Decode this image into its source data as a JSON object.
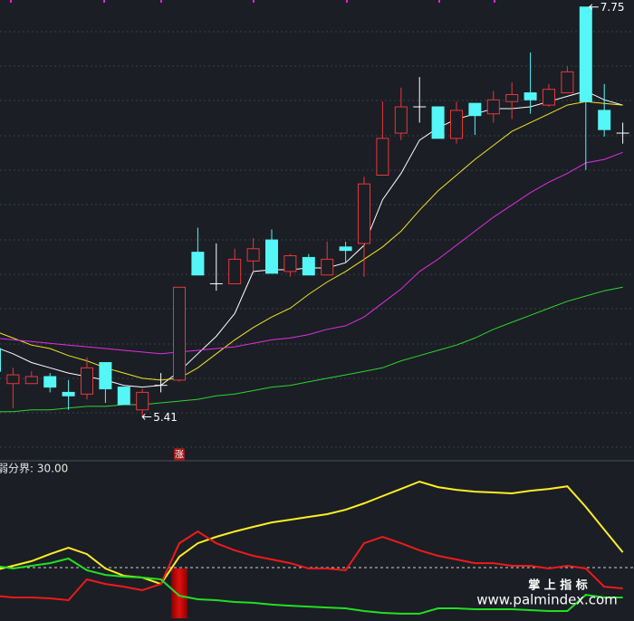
{
  "chart_data": [
    {
      "type": "candlestick",
      "ohlc": [
        [
          5.8,
          5.82,
          5.64,
          5.67
        ],
        [
          5.6,
          5.69,
          5.46,
          5.65
        ],
        [
          5.6,
          5.67,
          5.6,
          5.64
        ],
        [
          5.64,
          5.66,
          5.55,
          5.58
        ],
        [
          5.55,
          5.62,
          5.45,
          5.53
        ],
        [
          5.54,
          5.75,
          5.51,
          5.69
        ],
        [
          5.72,
          5.72,
          5.49,
          5.57
        ],
        [
          5.58,
          5.58,
          5.48,
          5.48
        ],
        [
          5.45,
          5.57,
          5.41,
          5.55
        ],
        [
          5.59,
          5.66,
          5.55,
          5.59
        ],
        [
          5.62,
          6.15,
          5.61,
          6.15
        ],
        [
          6.35,
          6.49,
          6.22,
          6.22
        ],
        [
          6.17,
          6.4,
          6.13,
          6.17
        ],
        [
          6.17,
          6.37,
          6.17,
          6.31
        ],
        [
          6.3,
          6.43,
          6.24,
          6.37
        ],
        [
          6.42,
          6.48,
          6.23,
          6.23
        ],
        [
          6.24,
          6.34,
          6.21,
          6.33
        ],
        [
          6.32,
          6.34,
          6.22,
          6.22
        ],
        [
          6.22,
          6.41,
          6.22,
          6.31
        ],
        [
          6.38,
          6.41,
          6.29,
          6.36
        ],
        [
          6.4,
          6.78,
          6.21,
          6.74
        ],
        [
          6.79,
          7.21,
          6.79,
          7.0
        ],
        [
          7.03,
          7.29,
          6.99,
          7.18
        ],
        [
          7.18,
          7.35,
          7.09,
          7.18
        ],
        [
          7.18,
          7.18,
          7.0,
          7.0
        ],
        [
          7.0,
          7.21,
          6.97,
          7.16
        ],
        [
          7.2,
          7.2,
          7.02,
          7.13
        ],
        [
          7.14,
          7.27,
          7.09,
          7.22
        ],
        [
          7.21,
          7.32,
          7.11,
          7.25
        ],
        [
          7.26,
          7.49,
          7.14,
          7.22
        ],
        [
          7.19,
          7.31,
          7.18,
          7.28
        ],
        [
          7.26,
          7.41,
          7.26,
          7.38
        ],
        [
          7.75,
          7.75,
          6.82,
          7.21
        ],
        [
          7.16,
          7.31,
          7.01,
          7.05
        ],
        [
          7.03,
          7.09,
          6.97,
          7.03
        ]
      ],
      "up_color": "#e8383a",
      "down_color": "#54f6f6",
      "doji_color": "#ffffff",
      "ylim": [
        5.18,
        7.79
      ],
      "high_mark": [
        32,
        1
      ],
      "low_mark": [
        8,
        2
      ],
      "series": [
        {
          "color": "#ffffff",
          "values": [
            5.81,
            5.77,
            5.72,
            5.69,
            5.66,
            5.64,
            5.62,
            5.59,
            5.58,
            5.59,
            5.67,
            5.77,
            5.87,
            6.0,
            6.24,
            6.25,
            6.25,
            6.26,
            6.26,
            6.29,
            6.39,
            6.65,
            6.8,
            6.99,
            7.06,
            7.11,
            7.14,
            7.17,
            7.17,
            7.18,
            7.21,
            7.24,
            7.27,
            7.22,
            7.19
          ]
        },
        {
          "color": "#f2e51e",
          "values": [
            5.9,
            5.86,
            5.82,
            5.8,
            5.76,
            5.73,
            5.69,
            5.66,
            5.63,
            5.62,
            5.63,
            5.69,
            5.77,
            5.85,
            5.92,
            5.98,
            6.03,
            6.11,
            6.18,
            6.24,
            6.31,
            6.38,
            6.47,
            6.59,
            6.7,
            6.79,
            6.88,
            6.96,
            7.04,
            7.09,
            7.14,
            7.19,
            7.21,
            7.2,
            7.19
          ]
        },
        {
          "color": "#e22ee2",
          "values": [
            5.86,
            5.85,
            5.84,
            5.83,
            5.82,
            5.81,
            5.8,
            5.79,
            5.78,
            5.77,
            5.78,
            5.79,
            5.8,
            5.81,
            5.83,
            5.85,
            5.86,
            5.88,
            5.91,
            5.93,
            5.98,
            6.06,
            6.14,
            6.24,
            6.31,
            6.39,
            6.47,
            6.55,
            6.62,
            6.69,
            6.75,
            6.8,
            6.86,
            6.88,
            6.92
          ]
        },
        {
          "color": "#2fd42f",
          "values": [
            5.44,
            5.44,
            5.45,
            5.45,
            5.46,
            5.47,
            5.47,
            5.48,
            5.48,
            5.49,
            5.5,
            5.51,
            5.53,
            5.54,
            5.56,
            5.58,
            5.59,
            5.61,
            5.63,
            5.65,
            5.67,
            5.69,
            5.73,
            5.76,
            5.79,
            5.82,
            5.86,
            5.91,
            5.95,
            5.99,
            6.03,
            6.07,
            6.1,
            6.13,
            6.15
          ]
        }
      ]
    },
    {
      "type": "line",
      "ylim": [
        0,
        89
      ],
      "threshold": {
        "value": 30,
        "label": "弱分界: 30.00"
      },
      "signal_text": "涨",
      "signal_color": "#e01010",
      "signal": [
        null,
        null,
        null,
        null,
        null,
        null,
        null,
        null,
        null,
        null,
        [
          1.5,
          29.5
        ],
        null,
        null,
        null,
        null,
        null,
        null,
        null,
        null,
        null,
        null,
        null,
        null,
        null,
        null,
        null,
        null,
        null,
        null,
        null,
        null,
        null,
        null,
        null,
        null
      ],
      "series": [
        {
          "color": "#ffee22",
          "values": [
            28.5,
            31.0,
            33.6,
            37.6,
            41.2,
            37.6,
            29.5,
            25.4,
            24.4,
            20.8,
            36.1,
            43.7,
            47.3,
            50.3,
            52.9,
            55.4,
            56.9,
            58.5,
            60.0,
            62.5,
            66.1,
            70.2,
            74.2,
            78.3,
            75.2,
            73.7,
            72.7,
            72.2,
            71.7,
            73.2,
            74.2,
            75.7,
            64.1,
            51.3,
            38.6
          ]
        },
        {
          "color": "#ee1a1a",
          "values": [
            14.2,
            13.2,
            13.2,
            12.7,
            11.7,
            23.4,
            20.8,
            19.3,
            17.3,
            20.8,
            43.7,
            50.3,
            43.7,
            39.7,
            36.6,
            34.6,
            32.5,
            29.5,
            29.5,
            28.5,
            43.7,
            47.3,
            43.7,
            39.7,
            36.6,
            34.6,
            32.5,
            32.5,
            31.0,
            31.0,
            29.5,
            31.0,
            29.5,
            19.3,
            18.3
          ]
        },
        {
          "color": "#22e022",
          "values": [
            31.0,
            29.5,
            31.0,
            32.5,
            35.1,
            28.5,
            25.9,
            24.9,
            24.4,
            23.4,
            14.2,
            12.2,
            11.7,
            10.7,
            10.2,
            9.2,
            8.6,
            8.1,
            7.6,
            7.1,
            5.6,
            4.6,
            4.1,
            4.1,
            7.1,
            7.1,
            6.6,
            6.6,
            6.6,
            6.1,
            5.6,
            5.6,
            14.7,
            13.2,
            13.2
          ]
        }
      ]
    }
  ],
  "watermark": {
    "title": "掌 上 指 标",
    "url": "www.palmindex.com"
  }
}
